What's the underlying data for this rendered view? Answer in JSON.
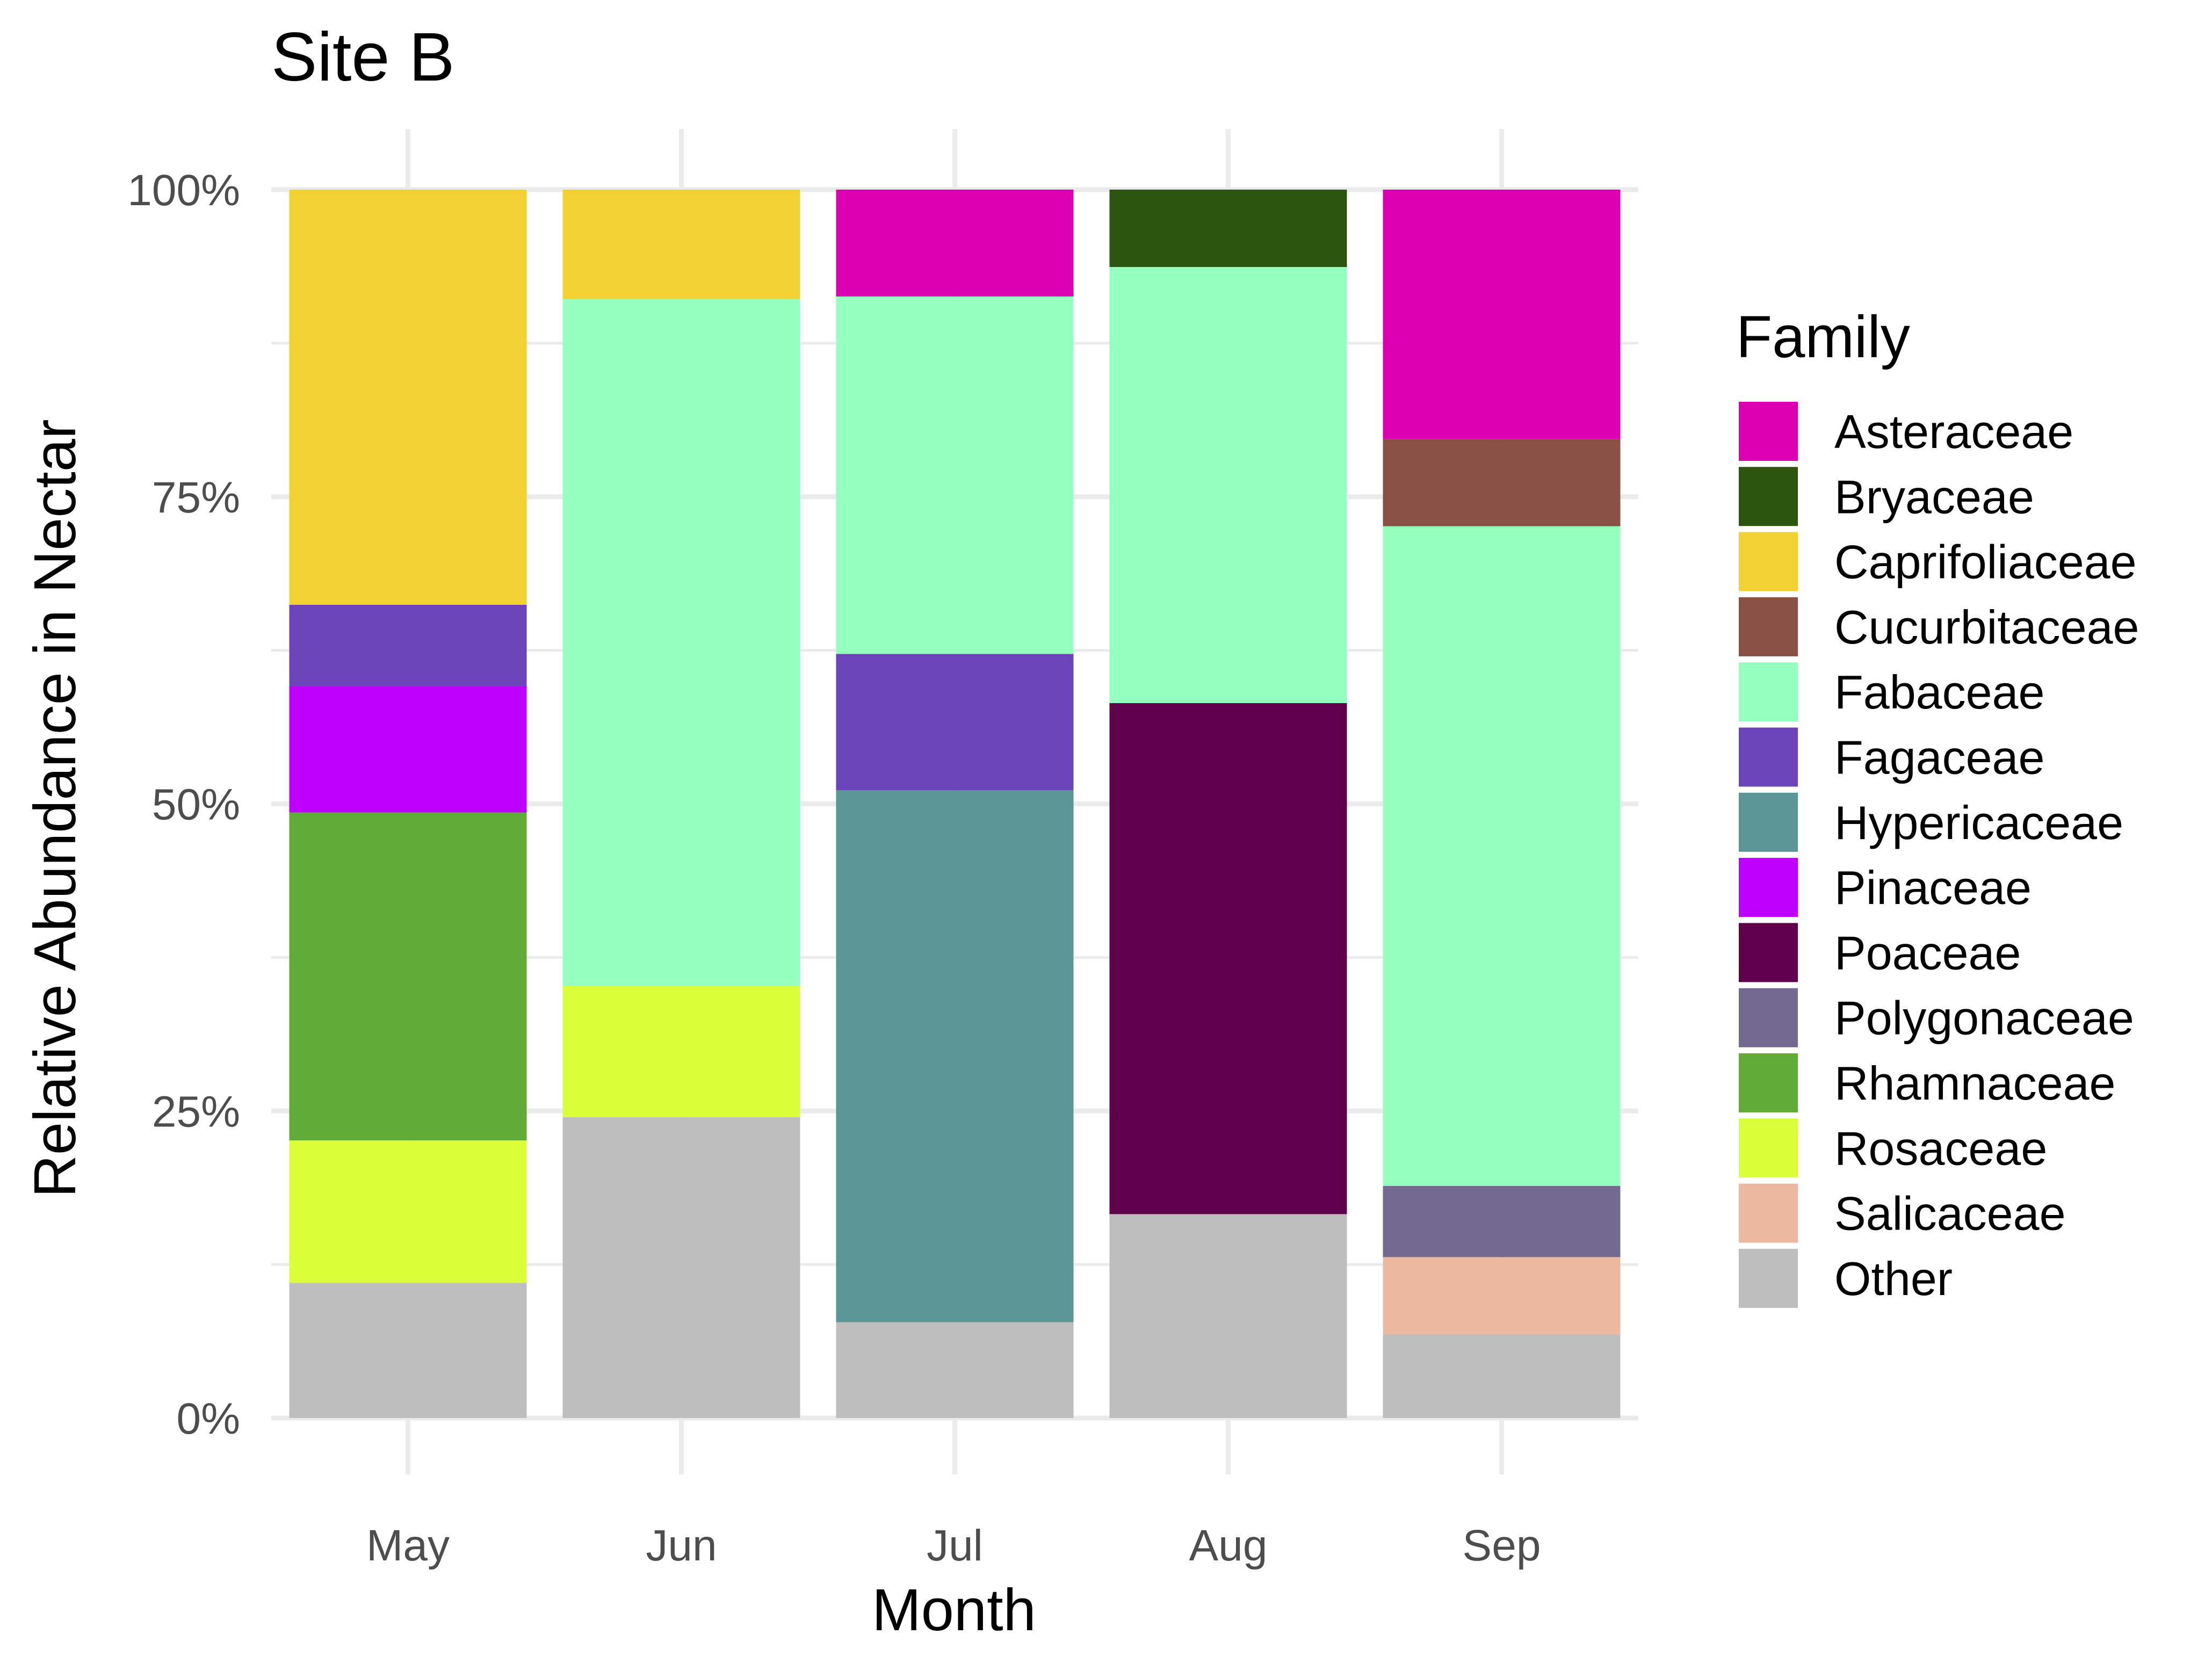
{
  "chart_data": {
    "type": "bar",
    "stacked": true,
    "title": "Site B",
    "xlabel": "Month",
    "ylabel": "Relative Abundance in Nectar",
    "ylim": [
      0,
      1
    ],
    "y_ticks": [
      {
        "value": 0,
        "label": "0%"
      },
      {
        "value": 0.25,
        "label": "25%"
      },
      {
        "value": 0.5,
        "label": "50%"
      },
      {
        "value": 0.75,
        "label": "75%"
      },
      {
        "value": 1,
        "label": "100%"
      }
    ],
    "categories": [
      "May",
      "Jun",
      "Jul",
      "Aug",
      "Sep"
    ],
    "legend_title": "Family",
    "legend_position": "right",
    "series": [
      {
        "name": "Asteraceae",
        "color": "#DD00B3",
        "values": [
          0,
          0,
          0.087,
          0,
          0.203
        ]
      },
      {
        "name": "Bryaceae",
        "color": "#2E5510",
        "values": [
          0,
          0,
          0,
          0.063,
          0
        ]
      },
      {
        "name": "Caprifoliaceae",
        "color": "#F3D132",
        "values": [
          0.338,
          0.089,
          0,
          0,
          0
        ]
      },
      {
        "name": "Cucurbitaceae",
        "color": "#8A4F45",
        "values": [
          0,
          0,
          0,
          0,
          0.071
        ]
      },
      {
        "name": "Fabaceae",
        "color": "#94FFBF",
        "values": [
          0,
          0.559,
          0.291,
          0.355,
          0.537
        ]
      },
      {
        "name": "Fagaceae",
        "color": "#6B44BA",
        "values": [
          0.066,
          0,
          0.111,
          0,
          0
        ]
      },
      {
        "name": "Hypericaceae",
        "color": "#5A9696",
        "values": [
          0,
          0,
          0.433,
          0,
          0
        ]
      },
      {
        "name": "Pinaceae",
        "color": "#BE00FF",
        "values": [
          0.103,
          0,
          0,
          0,
          0
        ]
      },
      {
        "name": "Poaceae",
        "color": "#60004D",
        "values": [
          0,
          0,
          0,
          0.416,
          0
        ]
      },
      {
        "name": "Polygonaceae",
        "color": "#736A91",
        "values": [
          0,
          0,
          0,
          0,
          0.058
        ]
      },
      {
        "name": "Rhamnaceae",
        "color": "#61AA36",
        "values": [
          0.267,
          0,
          0,
          0,
          0
        ]
      },
      {
        "name": "Rosaceae",
        "color": "#DAFF3A",
        "values": [
          0.116,
          0.107,
          0,
          0,
          0
        ]
      },
      {
        "name": "Salicaceae",
        "color": "#EDB8A0",
        "values": [
          0,
          0,
          0,
          0,
          0.063
        ]
      },
      {
        "name": "Other",
        "color": "#BEBEBE",
        "values": [
          0.11,
          0.245,
          0.078,
          0.166,
          0.068
        ]
      }
    ]
  }
}
